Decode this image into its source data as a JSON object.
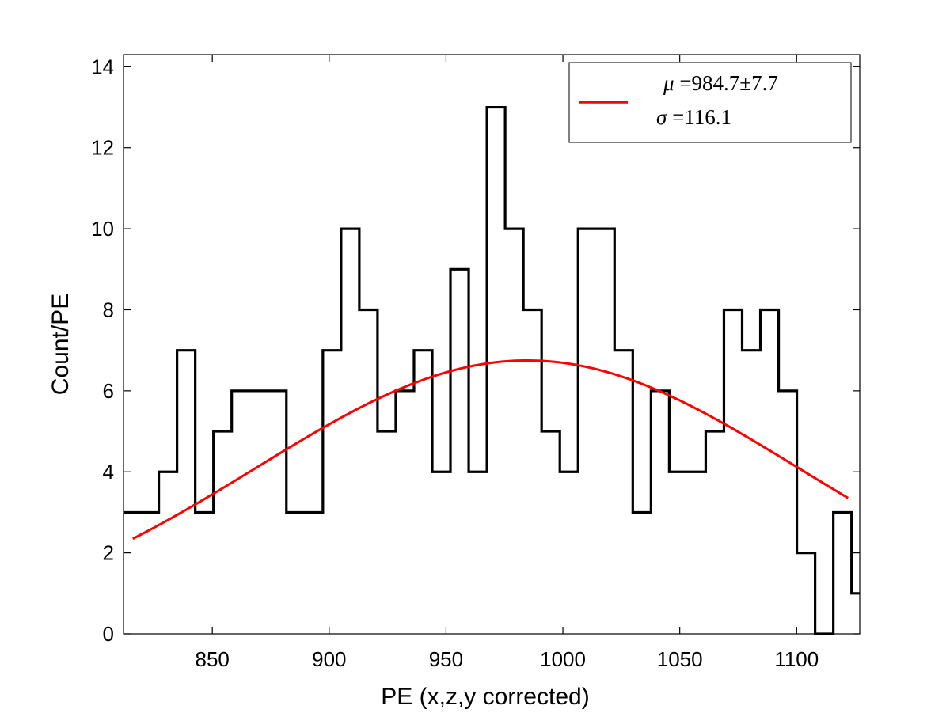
{
  "chart_data": {
    "type": "histogram",
    "xlabel": "PE (x,z,y corrected)",
    "ylabel": "Count/PE",
    "xlim": [
      812,
      1127
    ],
    "ylim": [
      0,
      14.3
    ],
    "xticks": [
      850,
      900,
      950,
      1000,
      1050,
      1100
    ],
    "yticks": [
      0,
      2,
      4,
      6,
      8,
      10,
      12,
      14
    ],
    "bin_width": 7.8,
    "bin_start": 811.5,
    "counts": [
      3,
      3,
      4,
      7,
      3,
      5,
      6,
      6,
      6,
      3,
      3,
      7,
      10,
      8,
      5,
      6,
      7,
      4,
      9,
      4,
      13,
      10,
      8,
      5,
      4,
      10,
      10,
      7,
      3,
      6,
      4,
      4,
      5,
      8,
      7,
      8,
      6,
      2,
      0,
      3,
      1
    ],
    "series": [
      {
        "name": "histogram",
        "color": "#000000"
      },
      {
        "name": "gaussian fit",
        "color": "#ff0000",
        "mu": 984.7,
        "sigma": 116.1,
        "amplitude": 6.75,
        "x_range": [
          816,
          1122
        ]
      }
    ],
    "legend": {
      "position": "top-right",
      "mu_symbol": "μ",
      "mu_text": " =984.7±7.7",
      "sigma_symbol": "σ",
      "sigma_text": " =116.1"
    },
    "colors": {
      "histogram": "#000000",
      "fit": "#ff0000",
      "background": "#ffffff"
    }
  }
}
